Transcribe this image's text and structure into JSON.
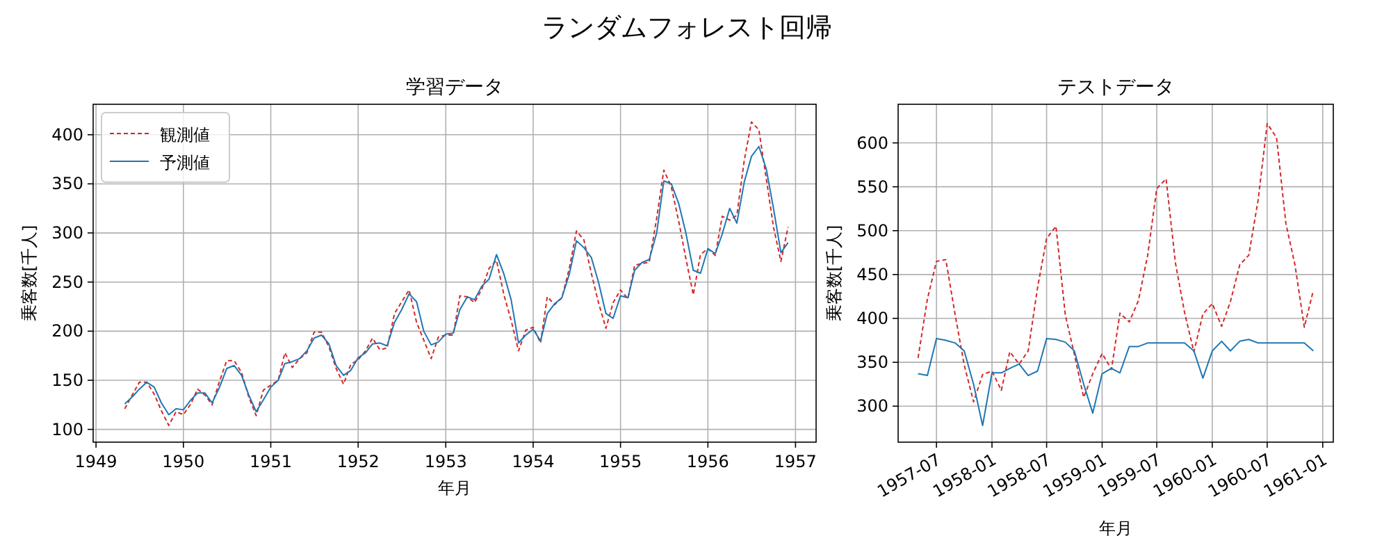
{
  "chart_data": [
    {
      "type": "line",
      "title": "学習データ",
      "xlabel": "年月",
      "ylabel": "乗客数[千人]",
      "annotations": [
        "ランダムフォレスト回帰"
      ],
      "legend": "top left",
      "grid": true,
      "xlim": [
        "1948-12-20",
        "1957-03-28"
      ],
      "xticks": [
        "1949",
        "1950",
        "1951",
        "1952",
        "1953",
        "1954",
        "1955",
        "1956",
        "1957"
      ],
      "ylim": [
        87,
        431
      ],
      "yticks": [
        100,
        150,
        200,
        250,
        300,
        350,
        400
      ],
      "x": [
        "1949-05",
        "1949-06",
        "1949-07",
        "1949-08",
        "1949-09",
        "1949-10",
        "1949-11",
        "1949-12",
        "1950-01",
        "1950-02",
        "1950-03",
        "1950-04",
        "1950-05",
        "1950-06",
        "1950-07",
        "1950-08",
        "1950-09",
        "1950-10",
        "1950-11",
        "1950-12",
        "1951-01",
        "1951-02",
        "1951-03",
        "1951-04",
        "1951-05",
        "1951-06",
        "1951-07",
        "1951-08",
        "1951-09",
        "1951-10",
        "1951-11",
        "1951-12",
        "1952-01",
        "1952-02",
        "1952-03",
        "1952-04",
        "1952-05",
        "1952-06",
        "1952-07",
        "1952-08",
        "1952-09",
        "1952-10",
        "1952-11",
        "1952-12",
        "1953-01",
        "1953-02",
        "1953-03",
        "1953-04",
        "1953-05",
        "1953-06",
        "1953-07",
        "1953-08",
        "1953-09",
        "1953-10",
        "1953-11",
        "1953-12",
        "1954-01",
        "1954-02",
        "1954-03",
        "1954-04",
        "1954-05",
        "1954-06",
        "1954-07",
        "1954-08",
        "1954-09",
        "1954-10",
        "1954-11",
        "1954-12",
        "1955-01",
        "1955-02",
        "1955-03",
        "1955-04",
        "1955-05",
        "1955-06",
        "1955-07",
        "1955-08",
        "1955-09",
        "1955-10",
        "1955-11",
        "1955-12",
        "1956-01",
        "1956-02",
        "1956-03",
        "1956-04",
        "1956-05",
        "1956-06",
        "1956-07",
        "1956-08",
        "1956-09",
        "1956-10",
        "1956-11",
        "1956-12"
      ],
      "series": [
        {
          "name": "観測値",
          "color": "#d62728",
          "line_style": "dashed",
          "values": [
            121,
            135,
            148,
            148,
            136,
            119,
            104,
            118,
            115,
            126,
            141,
            135,
            125,
            149,
            170,
            170,
            158,
            133,
            114,
            140,
            145,
            150,
            178,
            163,
            172,
            178,
            199,
            199,
            184,
            162,
            146,
            166,
            171,
            180,
            193,
            181,
            183,
            218,
            230,
            242,
            209,
            191,
            172,
            194,
            196,
            196,
            236,
            235,
            229,
            243,
            264,
            272,
            237,
            211,
            180,
            201,
            204,
            188,
            235,
            227,
            234,
            264,
            302,
            293,
            259,
            229,
            203,
            229,
            242,
            233,
            267,
            269,
            270,
            315,
            364,
            347,
            312,
            274,
            237,
            278,
            284,
            277,
            317,
            313,
            318,
            374,
            413,
            405,
            355,
            306,
            271,
            306
          ]
        },
        {
          "name": "予測値",
          "color": "#1f77b4",
          "line_style": "solid",
          "values": [
            126,
            133,
            141,
            148,
            143,
            127,
            115,
            121,
            120,
            130,
            137,
            137,
            127,
            143,
            162,
            165,
            155,
            135,
            118,
            130,
            143,
            150,
            167,
            169,
            172,
            180,
            193,
            196,
            187,
            165,
            155,
            160,
            173,
            178,
            187,
            188,
            185,
            209,
            222,
            238,
            230,
            200,
            186,
            189,
            197,
            198,
            222,
            235,
            232,
            246,
            253,
            278,
            258,
            232,
            188,
            196,
            202,
            190,
            218,
            228,
            234,
            258,
            292,
            285,
            275,
            250,
            218,
            213,
            236,
            234,
            262,
            270,
            273,
            300,
            353,
            350,
            330,
            300,
            262,
            259,
            284,
            279,
            299,
            325,
            310,
            352,
            378,
            388,
            365,
            325,
            280,
            290
          ]
        }
      ]
    },
    {
      "type": "line",
      "title": "テストデータ",
      "xlabel": "年月",
      "ylabel": "乗客数[千人]",
      "grid": true,
      "xlim": [
        "1957-02-24",
        "1961-02-05"
      ],
      "xticks": [
        "1957-07",
        "1958-01",
        "1958-07",
        "1959-01",
        "1959-07",
        "1960-01",
        "1960-07",
        "1961-01"
      ],
      "ylim": [
        259,
        644
      ],
      "yticks": [
        300,
        350,
        400,
        450,
        500,
        550,
        600
      ],
      "x": [
        "1957-05",
        "1957-06",
        "1957-07",
        "1957-08",
        "1957-09",
        "1957-10",
        "1957-11",
        "1957-12",
        "1958-01",
        "1958-02",
        "1958-03",
        "1958-04",
        "1958-05",
        "1958-06",
        "1958-07",
        "1958-08",
        "1958-09",
        "1958-10",
        "1958-11",
        "1958-12",
        "1959-01",
        "1959-02",
        "1959-03",
        "1959-04",
        "1959-05",
        "1959-06",
        "1959-07",
        "1959-08",
        "1959-09",
        "1959-10",
        "1959-11",
        "1959-12",
        "1960-01",
        "1960-02",
        "1960-03",
        "1960-04",
        "1960-05",
        "1960-06",
        "1960-07",
        "1960-08",
        "1960-09",
        "1960-10",
        "1960-11",
        "1960-12"
      ],
      "series": [
        {
          "color": "#d62728",
          "line_style": "dashed",
          "values": [
            355,
            422,
            465,
            467,
            404,
            347,
            305,
            336,
            340,
            318,
            362,
            348,
            363,
            435,
            491,
            505,
            404,
            359,
            310,
            337,
            360,
            342,
            406,
            396,
            420,
            472,
            548,
            559,
            463,
            407,
            362,
            405,
            417,
            391,
            419,
            461,
            472,
            535,
            622,
            606,
            508,
            461,
            390,
            432
          ]
        },
        {
          "color": "#1f77b4",
          "line_style": "solid",
          "values": [
            337,
            335,
            377,
            375,
            372,
            363,
            325,
            278,
            338,
            338,
            343,
            348,
            335,
            340,
            377,
            376,
            373,
            363,
            325,
            292,
            337,
            343,
            338,
            368,
            368,
            372,
            372,
            372,
            372,
            372,
            363,
            332,
            363,
            374,
            363,
            374,
            376,
            372,
            372,
            372,
            372,
            372,
            372,
            363
          ]
        }
      ]
    }
  ]
}
